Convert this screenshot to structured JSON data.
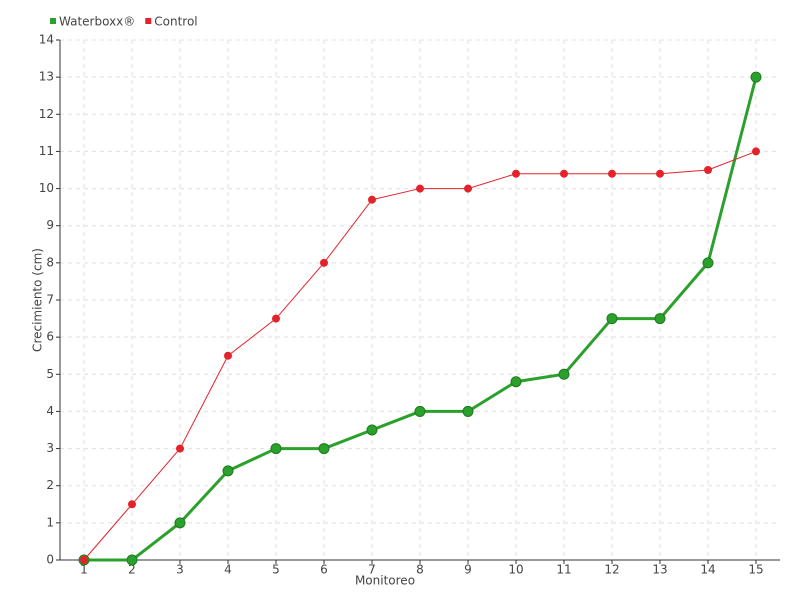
{
  "chart_data": {
    "type": "line",
    "x_label": "Monitoreo",
    "y_label": "Crecimiento (cm)",
    "categories": [
      "1",
      "2",
      "3",
      "4",
      "5",
      "6",
      "7",
      "8",
      "9",
      "10",
      "11",
      "12",
      "13",
      "14",
      "15"
    ],
    "series": [
      {
        "name": "Waterboxx®",
        "color": "#2ca02c",
        "values": [
          0,
          0,
          1,
          2.4,
          3,
          3,
          3.5,
          4,
          4,
          4.8,
          5,
          6.5,
          6.5,
          8,
          13
        ]
      },
      {
        "name": "Control",
        "color": "#e3232c",
        "values": [
          0,
          1.5,
          3,
          5.5,
          6.5,
          8,
          9.7,
          10,
          10,
          10.4,
          10.4,
          10.4,
          10.4,
          10.5,
          11
        ]
      }
    ],
    "ylim": [
      0,
      14
    ],
    "yticks": [
      0,
      1,
      2,
      3,
      4,
      5,
      6,
      7,
      8,
      9,
      10,
      11,
      12,
      13,
      14
    ],
    "grid": true,
    "legend": "top-left"
  }
}
